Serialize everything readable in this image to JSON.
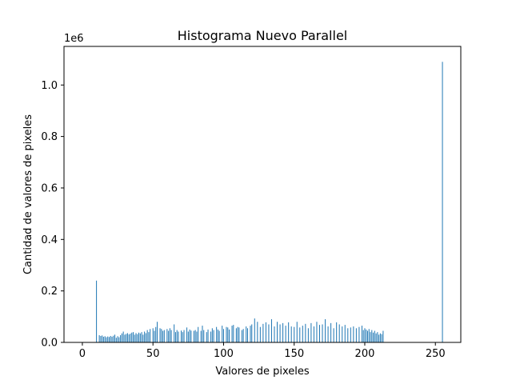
{
  "chart_data": {
    "type": "bar",
    "title": "Histograma Nuevo Parallel",
    "xlabel": "Valores de pixeles",
    "ylabel": "Cantidad de valores de pixeles",
    "y_scale_note": "1e6",
    "xlim": [
      -13,
      268
    ],
    "ylim": [
      0,
      1150000
    ],
    "x_ticks": [
      0,
      50,
      100,
      150,
      200,
      250
    ],
    "x_tick_labels": [
      "0",
      "50",
      "100",
      "150",
      "200",
      "250"
    ],
    "y_ticks": [
      0,
      200000,
      400000,
      600000,
      800000,
      1000000
    ],
    "y_tick_labels": [
      "0.0",
      "0.2",
      "0.4",
      "0.6",
      "0.8",
      "1.0"
    ],
    "bar_color": "#1f77b4",
    "grid": false,
    "x": [
      10,
      12,
      13,
      14,
      15,
      16,
      17,
      18,
      19,
      20,
      21,
      22,
      23,
      24,
      25,
      26,
      27,
      28,
      29,
      30,
      31,
      32,
      33,
      34,
      35,
      36,
      37,
      38,
      39,
      40,
      41,
      42,
      43,
      44,
      45,
      46,
      47,
      48,
      50,
      51,
      52,
      53,
      55,
      56,
      57,
      58,
      60,
      61,
      62,
      63,
      65,
      66,
      67,
      68,
      70,
      71,
      72,
      74,
      75,
      76,
      77,
      79,
      80,
      81,
      82,
      84,
      85,
      86,
      88,
      89,
      91,
      92,
      93,
      95,
      96,
      97,
      99,
      100,
      102,
      103,
      104,
      106,
      107,
      109,
      110,
      111,
      113,
      114,
      116,
      117,
      119,
      120,
      122,
      124,
      126,
      128,
      130,
      132,
      134,
      136,
      138,
      140,
      142,
      144,
      146,
      148,
      150,
      152,
      154,
      156,
      158,
      160,
      162,
      164,
      166,
      168,
      170,
      172,
      174,
      176,
      178,
      180,
      182,
      184,
      186,
      188,
      190,
      192,
      194,
      196,
      198,
      199,
      200,
      201,
      202,
      203,
      204,
      205,
      206,
      207,
      208,
      209,
      210,
      211,
      212,
      213,
      255
    ],
    "values": [
      240000,
      28000,
      25000,
      27000,
      22000,
      24000,
      20000,
      23000,
      21000,
      25000,
      22000,
      26000,
      30000,
      18000,
      24000,
      20000,
      28000,
      35000,
      42000,
      30000,
      33000,
      36000,
      31000,
      34000,
      38000,
      40000,
      30000,
      36000,
      32000,
      38000,
      35000,
      40000,
      30000,
      42000,
      36000,
      48000,
      40000,
      52000,
      55000,
      45000,
      60000,
      80000,
      55000,
      52000,
      45000,
      48000,
      52000,
      45000,
      55000,
      48000,
      70000,
      40000,
      48000,
      42000,
      46000,
      40000,
      48000,
      58000,
      42000,
      50000,
      46000,
      45000,
      48000,
      42000,
      60000,
      45000,
      65000,
      48000,
      40000,
      50000,
      42000,
      55000,
      48000,
      60000,
      50000,
      45000,
      65000,
      52000,
      60000,
      58000,
      50000,
      65000,
      68000,
      55000,
      60000,
      58000,
      48000,
      52000,
      62000,
      55000,
      65000,
      70000,
      93000,
      80000,
      60000,
      72000,
      78000,
      70000,
      90000,
      62000,
      80000,
      70000,
      75000,
      65000,
      78000,
      62000,
      60000,
      80000,
      58000,
      65000,
      72000,
      55000,
      75000,
      62000,
      80000,
      68000,
      70000,
      90000,
      62000,
      75000,
      55000,
      78000,
      70000,
      62000,
      68000,
      55000,
      58000,
      62000,
      55000,
      60000,
      65000,
      48000,
      55000,
      50000,
      45000,
      52000,
      40000,
      48000,
      38000,
      45000,
      35000,
      40000,
      30000,
      35000,
      32000,
      45000,
      1090000
    ]
  }
}
